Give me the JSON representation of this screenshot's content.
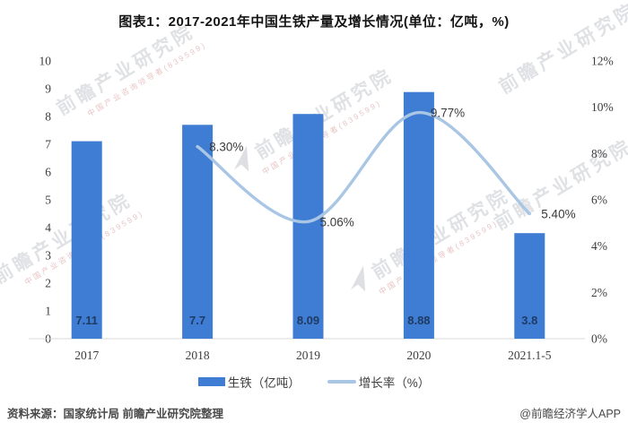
{
  "title": "图表1：2017-2021年中国生铁产量及增长情况(单位：亿吨，%)",
  "chart_data": {
    "type": "bar+line",
    "categories": [
      "2017",
      "2018",
      "2019",
      "2020",
      "2021.1-5"
    ],
    "series": [
      {
        "name": "生铁（亿吨）",
        "type": "bar",
        "axis": "left",
        "values": [
          7.11,
          7.7,
          8.09,
          8.88,
          3.8
        ],
        "labels": [
          "7.11",
          "7.7",
          "8.09",
          "8.88",
          "3.8"
        ],
        "color": "#3e7dd3"
      },
      {
        "name": "增长率（%）",
        "type": "line",
        "axis": "right",
        "values": [
          null,
          8.3,
          5.06,
          9.77,
          5.4
        ],
        "labels": [
          null,
          "8.30%",
          "5.06%",
          "9.77%",
          "5.40%"
        ],
        "color": "#a9c6e4"
      }
    ],
    "left_axis": {
      "min": 0,
      "max": 10,
      "step": 1,
      "ticks": [
        "0",
        "1",
        "2",
        "3",
        "4",
        "5",
        "6",
        "7",
        "8",
        "9",
        "10"
      ]
    },
    "right_axis": {
      "min": 0,
      "max": 12,
      "step": 2,
      "ticks": [
        "0%",
        "2%",
        "4%",
        "6%",
        "8%",
        "10%",
        "12%"
      ]
    },
    "grid": "off",
    "legend_position": "bottom",
    "legend": [
      {
        "label": "生铁（亿吨）",
        "type": "bar",
        "color": "#3e7dd3"
      },
      {
        "label": "增长率（%）",
        "type": "line",
        "color": "#a9c6e4"
      }
    ]
  },
  "colors": {
    "bar": "#3e7dd3",
    "line": "#a9c6e4",
    "bar_value_label": "#1f3b63",
    "axis_text": "#3d3d3d",
    "data_label_text": "#3b3b3b",
    "baseline": "#d9d9d9",
    "title_text": "#141414",
    "footer_text": "#4a4a4a"
  },
  "watermark": {
    "text": "前瞻产业研究院",
    "subtext": "中国产业咨询领导者(839599)"
  },
  "footer": {
    "source": "资料来源：国家统计局 前瞻产业研究院整理",
    "credit": "@前瞻经济学人APP"
  }
}
